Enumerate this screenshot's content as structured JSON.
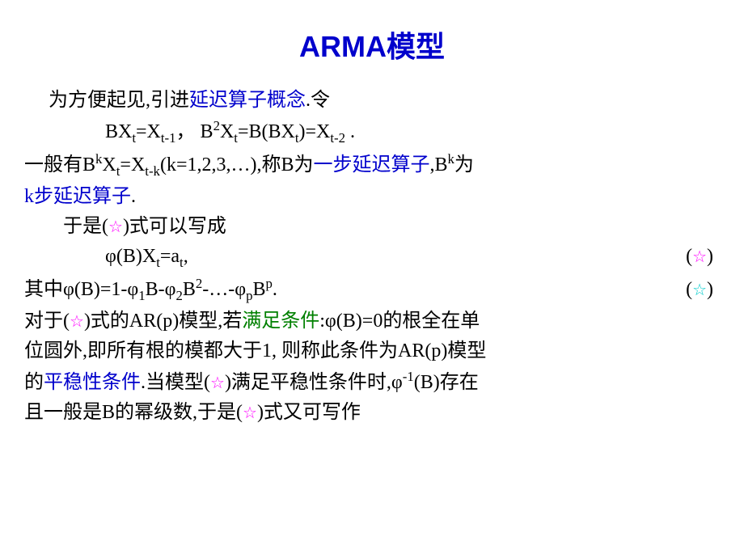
{
  "title": "ARMA模型",
  "line1_a": "为方便起见,引进",
  "line1_b": "延迟算子概念",
  "line1_c": ".令",
  "line2_a": "BX",
  "line2_b": "=X",
  "line2_c": "，  B",
  "line2_d": "X",
  "line2_e": "=B(BX",
  "line2_f": ")=X",
  "line2_g": " .",
  "line3_a": "一般有B",
  "line3_b": "X",
  "line3_c": "=X",
  "line3_d": "(k=1,2,3,…),称B为",
  "line3_e": "一步延迟算子",
  "line3_f": ",B",
  "line3_g": "为",
  "line4_a": "k步延迟算子",
  "line4_b": ".",
  "line5_a": "于是(",
  "line5_b": ")式可以写成",
  "line6_a": "φ(B)X",
  "line6_b": "=a",
  "line6_c": ",",
  "line6_star_open": "(",
  "line6_star_close": ")",
  "line7_a": "其中φ(B)=1-φ",
  "line7_b": "B-φ",
  "line7_c": "B",
  "line7_d": "-…-φ",
  "line7_e": "B",
  "line7_f": ".",
  "line8_a": "对于(",
  "line8_b": ")式的AR(p)模型,若",
  "line8_c": "满足条件",
  "line8_d": ":φ(B)=0的根全在单",
  "line9": "位圆外,即所有根的模都大于1, 则称此条件为AR(p)模型",
  "line10_a": "的",
  "line10_b": "平稳性条件",
  "line10_c": ".当模型(",
  "line10_d": ")满足平稳性条件时,φ",
  "line10_e": "(B)存在",
  "line11_a": "且一般是B的幂级数,于是(",
  "line11_b": ")式又可写作",
  "star_pink": "☆",
  "star_cyan": "☆",
  "sub_t": "t",
  "sub_tm1": "t-1",
  "sub_tm2": "t-2",
  "sub_tmk": "t-k",
  "sub_1": "1",
  "sub_2": "2",
  "sub_p": "p",
  "sup_2": "2",
  "sup_k": "k",
  "sup_p": "p",
  "sup_m1": "-1"
}
